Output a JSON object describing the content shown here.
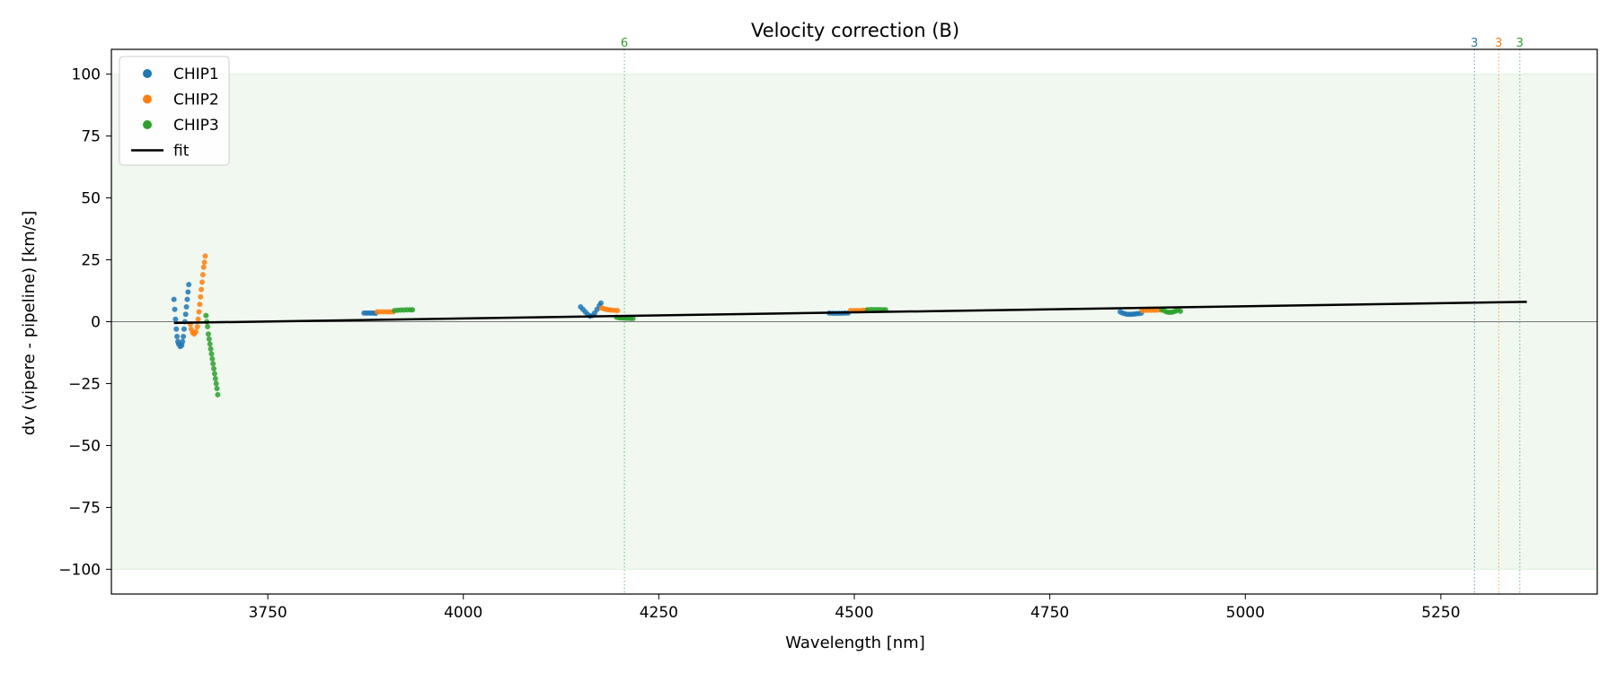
{
  "chart_data": {
    "type": "scatter",
    "title": "Velocity correction (B)",
    "xlabel": "Wavelength [nm]",
    "ylabel": "dv (vipere - pipeline) [km/s]",
    "xlim": [
      3550,
      5450
    ],
    "ylim": [
      -110,
      110
    ],
    "xticks": [
      3750,
      4000,
      4250,
      4500,
      4750,
      5000,
      5250
    ],
    "yticks": [
      -100,
      -75,
      -50,
      -25,
      0,
      25,
      50,
      75,
      100
    ],
    "xtick_labels": [
      "3750",
      "4000",
      "4250",
      "4500",
      "4750",
      "5000",
      "5250"
    ],
    "ytick_labels": [
      "−100",
      "−75",
      "−50",
      "−25",
      "0",
      "25",
      "50",
      "75",
      "100"
    ],
    "shaded_band": {
      "y": [
        -100,
        100
      ],
      "color": "#2ca02c"
    },
    "zero_line": 0,
    "grid": false,
    "legend": {
      "position": "top-left",
      "entries": [
        {
          "label": "CHIP1",
          "marker": "dot",
          "color": "#1f77b4"
        },
        {
          "label": "CHIP2",
          "marker": "dot",
          "color": "#ff7f0e"
        },
        {
          "label": "CHIP3",
          "marker": "dot",
          "color": "#2ca02c"
        },
        {
          "label": "fit",
          "marker": "line",
          "color": "#000000"
        }
      ]
    },
    "fit": {
      "name": "fit",
      "color": "#000000",
      "points": [
        [
          3630,
          -0.5
        ],
        [
          5360,
          8.0
        ]
      ]
    },
    "vlines": [
      {
        "x": 4206,
        "color": "#2ca02c",
        "label": "6"
      },
      {
        "x": 5293,
        "color": "#1f77b4",
        "label": "3"
      },
      {
        "x": 5324,
        "color": "#ff7f0e",
        "label": "3"
      },
      {
        "x": 5351,
        "color": "#2ca02c",
        "label": "3"
      }
    ],
    "series": [
      {
        "name": "CHIP1",
        "color": "#1f77b4",
        "segments": [
          [
            [
              3630,
              9
            ],
            [
              3631,
              5
            ],
            [
              3632,
              1
            ],
            [
              3633,
              -3
            ],
            [
              3634,
              -6
            ],
            [
              3635,
              -8
            ],
            [
              3636,
              -9
            ],
            [
              3638,
              -10
            ],
            [
              3640,
              -9.5
            ],
            [
              3641,
              -8
            ],
            [
              3642,
              -6
            ],
            [
              3643,
              -3
            ],
            [
              3644,
              0
            ],
            [
              3645,
              3
            ],
            [
              3646,
              6
            ],
            [
              3647,
              9
            ],
            [
              3648,
              12
            ],
            [
              3649,
              15
            ]
          ],
          [
            [
              3873,
              3.5
            ],
            [
              3876,
              3.5
            ],
            [
              3879,
              3.5
            ],
            [
              3882,
              3.5
            ],
            [
              3885,
              3.5
            ],
            [
              3888,
              3.4
            ]
          ],
          [
            [
              4150,
              6
            ],
            [
              4153,
              5
            ],
            [
              4156,
              4
            ],
            [
              4159,
              3
            ],
            [
              4162,
              2.2
            ],
            [
              4165,
              2.5
            ],
            [
              4168,
              3.5
            ],
            [
              4171,
              5
            ],
            [
              4174,
              6.5
            ],
            [
              4176,
              7.5
            ]
          ],
          [
            [
              4468,
              3.5
            ],
            [
              4472,
              3.4
            ],
            [
              4476,
              3.4
            ],
            [
              4480,
              3.4
            ],
            [
              4484,
              3.4
            ],
            [
              4488,
              3.5
            ],
            [
              4492,
              3.5
            ]
          ],
          [
            [
              4840,
              4
            ],
            [
              4843,
              3.5
            ],
            [
              4846,
              3.2
            ],
            [
              4849,
              3.0
            ],
            [
              4852,
              3.0
            ],
            [
              4855,
              3.0
            ],
            [
              4858,
              3.1
            ],
            [
              4861,
              3.2
            ],
            [
              4864,
              3.3
            ],
            [
              4867,
              3.5
            ]
          ]
        ]
      },
      {
        "name": "CHIP2",
        "color": "#ff7f0e",
        "segments": [
          [
            [
              3651,
              -1
            ],
            [
              3652,
              -3
            ],
            [
              3654,
              -4.5
            ],
            [
              3656,
              -5
            ],
            [
              3658,
              -4
            ],
            [
              3660,
              -2
            ],
            [
              3661,
              1
            ],
            [
              3662,
              4
            ],
            [
              3663,
              7
            ],
            [
              3664,
              10
            ],
            [
              3665,
              13
            ],
            [
              3666,
              16
            ],
            [
              3667,
              19
            ],
            [
              3668,
              22
            ],
            [
              3669,
              24
            ],
            [
              3670,
              26.5
            ]
          ],
          [
            [
              3890,
              4
            ],
            [
              3894,
              4
            ],
            [
              3898,
              4
            ],
            [
              3902,
              4
            ],
            [
              3906,
              4
            ],
            [
              3910,
              4
            ]
          ],
          [
            [
              4177,
              5.5
            ],
            [
              4180,
              5.2
            ],
            [
              4183,
              5
            ],
            [
              4186,
              4.8
            ],
            [
              4189,
              4.7
            ],
            [
              4193,
              4.6
            ],
            [
              4197,
              4.5
            ]
          ],
          [
            [
              4495,
              4.5
            ],
            [
              4499,
              4.5
            ],
            [
              4503,
              4.5
            ],
            [
              4507,
              4.5
            ],
            [
              4511,
              4.6
            ],
            [
              4515,
              4.6
            ]
          ],
          [
            [
              4868,
              4.5
            ],
            [
              4872,
              4.6
            ],
            [
              4876,
              4.6
            ],
            [
              4880,
              4.6
            ],
            [
              4884,
              4.6
            ],
            [
              4888,
              4.7
            ],
            [
              4892,
              4.7
            ]
          ]
        ]
      },
      {
        "name": "CHIP3",
        "color": "#2ca02c",
        "segments": [
          [
            [
              3671,
              2.5
            ],
            [
              3672,
              0
            ],
            [
              3673,
              -2
            ],
            [
              3674,
              -5
            ],
            [
              3675,
              -7
            ],
            [
              3676,
              -9
            ],
            [
              3677,
              -11
            ],
            [
              3678,
              -13
            ],
            [
              3679,
              -15
            ],
            [
              3680,
              -17
            ],
            [
              3681,
              -19
            ],
            [
              3682,
              -21
            ],
            [
              3683,
              -23
            ],
            [
              3684,
              -25
            ],
            [
              3685,
              -27
            ],
            [
              3686,
              -29.5
            ]
          ],
          [
            [
              3912,
              4.5
            ],
            [
              3916,
              4.6
            ],
            [
              3920,
              4.7
            ],
            [
              3924,
              4.7
            ],
            [
              3928,
              4.8
            ],
            [
              3932,
              4.8
            ],
            [
              3935,
              4.8
            ]
          ],
          [
            [
              4196,
              1.8
            ],
            [
              4199,
              1.6
            ],
            [
              4202,
              1.5
            ],
            [
              4205,
              1.5
            ],
            [
              4208,
              1.4
            ],
            [
              4211,
              1.4
            ],
            [
              4214,
              1.3
            ],
            [
              4217,
              1.3
            ]
          ],
          [
            [
              4517,
              4.8
            ],
            [
              4521,
              4.9
            ],
            [
              4525,
              4.9
            ],
            [
              4529,
              4.9
            ],
            [
              4533,
              4.9
            ],
            [
              4537,
              4.8
            ],
            [
              4540,
              4.8
            ]
          ],
          [
            [
              4893,
              5
            ],
            [
              4896,
              4.5
            ],
            [
              4899,
              4.0
            ],
            [
              4902,
              3.8
            ],
            [
              4905,
              3.8
            ],
            [
              4908,
              4.0
            ],
            [
              4911,
              4.3
            ],
            [
              4914,
              4.7
            ],
            [
              4917,
              4.2
            ]
          ]
        ]
      }
    ]
  }
}
